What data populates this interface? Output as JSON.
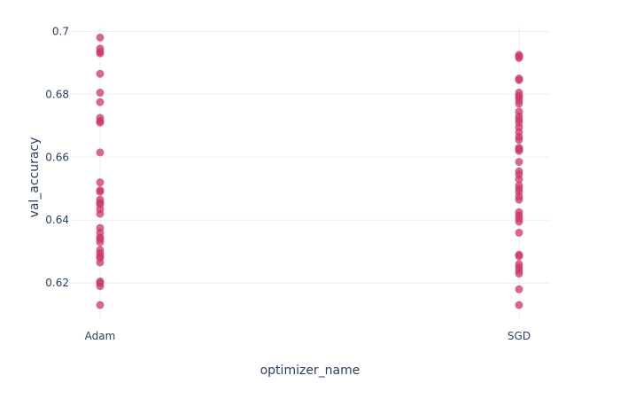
{
  "chart_data": {
    "type": "scatter",
    "xlabel": "optimizer_name",
    "ylabel": "val_accuracy",
    "categories": [
      "Adam",
      "SGD"
    ],
    "yticks": [
      0.62,
      0.64,
      0.66,
      0.68,
      0.7
    ],
    "ytick_labels": [
      "0.62",
      "0.64",
      "0.66",
      "0.68",
      "0.7"
    ],
    "ylim": [
      0.6085,
      0.7015
    ],
    "grid": true,
    "marker_color": "#c9376b",
    "series": [
      {
        "category": "Adam",
        "values": [
          0.698,
          0.6945,
          0.6935,
          0.693,
          0.6865,
          0.6805,
          0.6775,
          0.6725,
          0.6715,
          0.671,
          0.6615,
          0.652,
          0.6495,
          0.649,
          0.6465,
          0.6455,
          0.645,
          0.6435,
          0.642,
          0.6375,
          0.636,
          0.6345,
          0.634,
          0.633,
          0.6305,
          0.6295,
          0.6285,
          0.628,
          0.6265,
          0.6205,
          0.62,
          0.619,
          0.613
        ]
      },
      {
        "category": "SGD",
        "values": [
          0.6925,
          0.692,
          0.6915,
          0.685,
          0.6845,
          0.6805,
          0.6795,
          0.679,
          0.678,
          0.677,
          0.6745,
          0.673,
          0.672,
          0.671,
          0.6695,
          0.668,
          0.6665,
          0.6655,
          0.663,
          0.6625,
          0.662,
          0.6585,
          0.6555,
          0.6545,
          0.653,
          0.651,
          0.65,
          0.649,
          0.6475,
          0.6465,
          0.6425,
          0.6415,
          0.6405,
          0.6395,
          0.636,
          0.629,
          0.6285,
          0.626,
          0.625,
          0.624,
          0.623,
          0.618,
          0.613
        ]
      }
    ]
  }
}
